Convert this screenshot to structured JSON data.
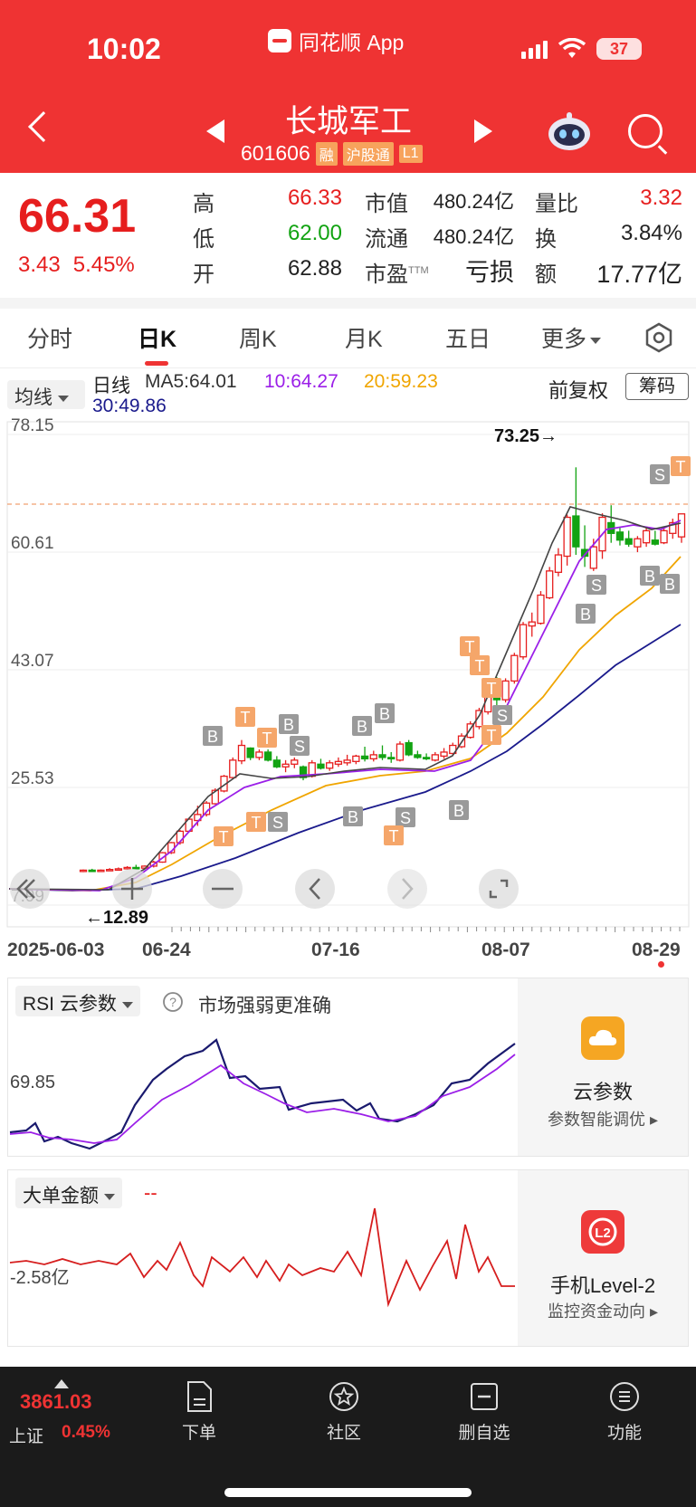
{
  "status_bar": {
    "time": "10:02",
    "source_app": "同花顺 App",
    "battery": "37"
  },
  "header": {
    "name": "长城军工",
    "code": "601606",
    "tags": [
      "融",
      "沪股通",
      "L1"
    ]
  },
  "quote": {
    "price": "66.31",
    "change": "3.43",
    "change_pct": "5.45%",
    "high_label": "高",
    "high": "66.33",
    "low_label": "低",
    "low": "62.00",
    "open_label": "开",
    "open": "62.88",
    "mcap_label": "市值",
    "mcap": "480.24亿",
    "float_label": "流通",
    "float": "480.24亿",
    "pe_label": "市盈",
    "pe_sup": "TTM",
    "pe": "亏损",
    "vr_label": "量比",
    "vr": "3.32",
    "turnover_label": "换",
    "turnover": "3.84%",
    "amount_label": "额",
    "amount": "17.77亿"
  },
  "tabs": [
    "分时",
    "日K",
    "周K",
    "月K",
    "五日",
    "更多"
  ],
  "active_tab": "日K",
  "ma_bar": {
    "dropdown": "均线",
    "line_type": "日线",
    "ma5": "MA5:64.01",
    "ma10": "10:64.27",
    "ma20": "20:59.23",
    "ma30": "30:49.86",
    "fuquan": "前复权",
    "chouma": "筹码"
  },
  "kchart": {
    "y_ticks": [
      "78.15",
      "60.61",
      "43.07",
      "25.53",
      "7.99"
    ],
    "y_tick_values": [
      78.15,
      60.61,
      43.07,
      25.53,
      7.99
    ],
    "high_annotation": "73.25→",
    "low_annotation": "←12.89",
    "dates": [
      "2025-06-03",
      "06-24",
      "07-16",
      "08-07",
      "08-29"
    ]
  },
  "rsi_panel": {
    "button": "RSI 云参数",
    "hint": "市场强弱更准确",
    "value_label": "69.85",
    "side_title": "云参数",
    "side_sub": "参数智能调优 ▸"
  },
  "big_order_panel": {
    "button": "大单金额",
    "dash": "--",
    "value_label": "-2.58亿",
    "side_title": "手机Level-2",
    "side_sub": "监控资金动向 ▸"
  },
  "bottom_nav": {
    "index_value": "3861.03",
    "index_name": "上证",
    "index_pct": "0.45%",
    "items": [
      "下单",
      "社区",
      "删自选",
      "功能"
    ]
  },
  "colors": {
    "up": "#e61e1e",
    "down": "#12a312",
    "header": "#ef3333",
    "ma5": "#333333",
    "ma10": "#9b1fe8",
    "ma20": "#f0a500",
    "ma30": "#1a1a8c"
  }
}
